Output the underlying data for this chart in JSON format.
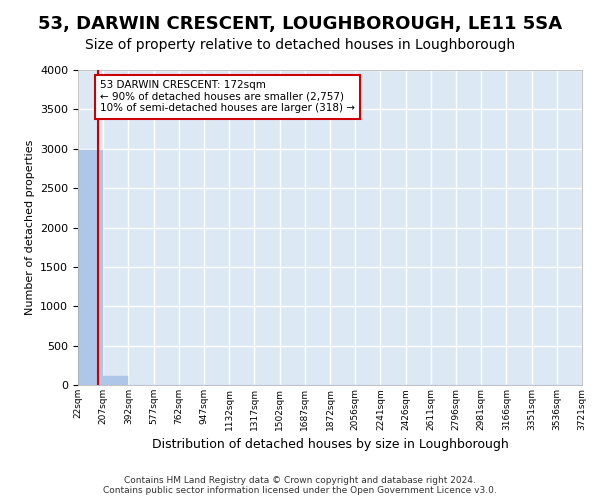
{
  "title1": "53, DARWIN CRESCENT, LOUGHBOROUGH, LE11 5SA",
  "title2": "Size of property relative to detached houses in Loughborough",
  "xlabel": "Distribution of detached houses by size in Loughborough",
  "ylabel": "Number of detached properties",
  "footnote": "Contains HM Land Registry data © Crown copyright and database right 2024.\nContains public sector information licensed under the Open Government Licence v3.0.",
  "bin_edges_labels": [
    "22sqm",
    "207sqm",
    "392sqm",
    "577sqm",
    "762sqm",
    "947sqm",
    "1132sqm",
    "1317sqm",
    "1502sqm",
    "1687sqm",
    "1872sqm",
    "2056sqm",
    "2241sqm",
    "2426sqm",
    "2611sqm",
    "2796sqm",
    "2981sqm",
    "3166sqm",
    "3351sqm",
    "3536sqm",
    "3721sqm"
  ],
  "bar_values": [
    2980,
    120,
    0,
    0,
    0,
    0,
    0,
    0,
    0,
    0,
    0,
    0,
    0,
    0,
    0,
    0,
    0,
    0,
    0,
    0
  ],
  "bar_color": "#aec6e8",
  "annotation_line1": "53 DARWIN CRESCENT: 172sqm",
  "annotation_line2": "← 90% of detached houses are smaller (2,757)",
  "annotation_line3": "10% of semi-detached houses are larger (318) →",
  "annotation_box_color": "#cc0000",
  "ylim": [
    0,
    4000
  ],
  "yticks": [
    0,
    500,
    1000,
    1500,
    2000,
    2500,
    3000,
    3500,
    4000
  ],
  "plot_bg": "#dce9f5",
  "grid_color": "#ffffff",
  "title1_fontsize": 13,
  "title2_fontsize": 10
}
